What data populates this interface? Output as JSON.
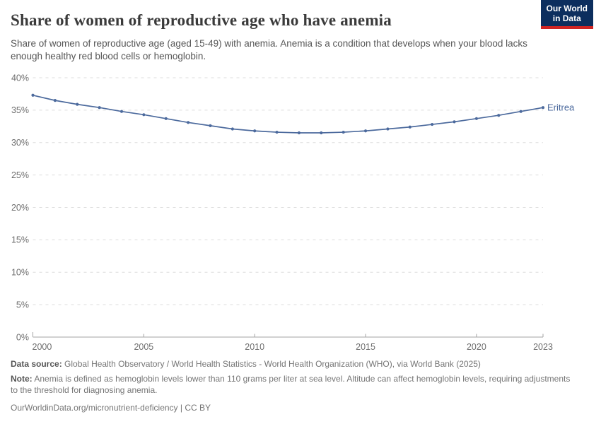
{
  "header": {
    "logo": {
      "line1": "Our World",
      "line2": "in Data",
      "bg": "#0c2e5e",
      "accent": "#cf2423"
    }
  },
  "chart_data": {
    "type": "line",
    "title": "Share of women of reproductive age who have anemia",
    "subtitle": "Share of women of reproductive age (aged 15-49) with anemia. Anemia is a condition that develops when your blood lacks enough healthy red blood cells or hemoglobin.",
    "series": [
      {
        "name": "Eritrea",
        "color": "#4c6a9d",
        "x": [
          2000,
          2001,
          2002,
          2003,
          2004,
          2005,
          2006,
          2007,
          2008,
          2009,
          2010,
          2011,
          2012,
          2013,
          2014,
          2015,
          2016,
          2017,
          2018,
          2019,
          2020,
          2021,
          2022,
          2023
        ],
        "values": [
          37.3,
          36.5,
          35.9,
          35.4,
          34.8,
          34.3,
          33.7,
          33.1,
          32.6,
          32.1,
          31.8,
          31.6,
          31.5,
          31.5,
          31.6,
          31.8,
          32.1,
          32.4,
          32.8,
          33.2,
          33.7,
          34.2,
          34.8,
          35.4
        ]
      }
    ],
    "xlim": [
      2000,
      2023
    ],
    "ylim": [
      0,
      40
    ],
    "x_ticks": [
      2000,
      2005,
      2010,
      2015,
      2020,
      2023
    ],
    "y_ticks": [
      0,
      5,
      10,
      15,
      20,
      25,
      30,
      35,
      40
    ],
    "y_tick_suffix": "%",
    "grid": "horizontal-dashed",
    "legend_position": "end-of-line",
    "xlabel": "",
    "ylabel": ""
  },
  "footer": {
    "data_source_label": "Data source:",
    "data_source": "Global Health Observatory / World Health Statistics - World Health Organization (WHO), via World Bank (2025)",
    "note_label": "Note:",
    "note": "Anemia is defined as hemoglobin levels lower than 110 grams per liter at sea level. Altitude can affect hemoglobin levels, requiring adjustments to the threshold for diagnosing anemia.",
    "url": "OurWorldinData.org/micronutrient-deficiency",
    "separator": "|",
    "license": "CC BY"
  }
}
